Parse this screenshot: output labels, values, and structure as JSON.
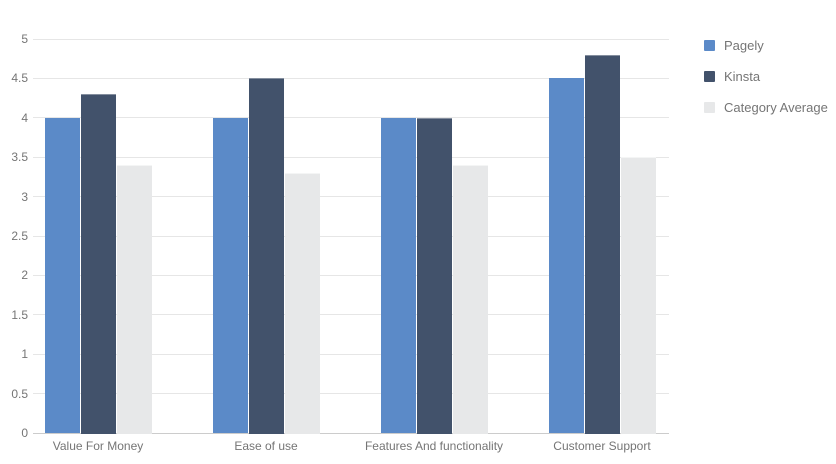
{
  "chart_data": {
    "type": "bar",
    "title": "",
    "xlabel": "",
    "ylabel": "",
    "categories": [
      "Value For Money",
      "Ease of use",
      "Features And functionality",
      "Customer Support"
    ],
    "series": [
      {
        "name": "Pagely",
        "color": "#5B8AC8",
        "pattern": null,
        "values": [
          4.0,
          4.0,
          4.0,
          4.5
        ]
      },
      {
        "name": "Kinsta",
        "color": "#42526B",
        "pattern": "light",
        "values": [
          4.3,
          4.5,
          4.0,
          4.8
        ]
      },
      {
        "name": "Category Average",
        "color": "#E7E8E9",
        "pattern": "dark",
        "values": [
          3.4,
          3.3,
          3.4,
          3.5
        ]
      }
    ],
    "ylim": [
      0,
      5
    ],
    "yticks": [
      0,
      0.5,
      1,
      1.5,
      2,
      2.5,
      3,
      3.5,
      4,
      4.5,
      5
    ],
    "grid": true,
    "legend_position": "right"
  },
  "colors": {
    "gridline": "#e6e6e6",
    "baseline": "#cccccc",
    "axis_text": "#757575",
    "background": "#ffffff"
  }
}
